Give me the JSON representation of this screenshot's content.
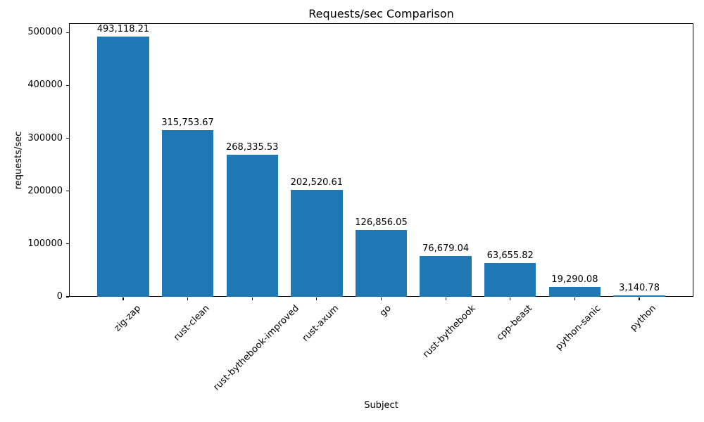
{
  "chart_data": {
    "type": "bar",
    "title": "Requests/sec Comparison",
    "xlabel": "Subject",
    "ylabel": "requests/sec",
    "categories": [
      "zig-zap",
      "rust-clean",
      "rust-bythebook-improved",
      "rust-axum",
      "go",
      "rust-bythebook",
      "cpp-beast",
      "python-sanic",
      "python"
    ],
    "values": [
      493118.21,
      315753.67,
      268335.53,
      202520.61,
      126856.05,
      76679.04,
      63655.82,
      19290.08,
      3140.78
    ],
    "value_labels": [
      "493,118.21",
      "315,753.67",
      "268,335.53",
      "202,520.61",
      "126,856.05",
      "76,679.04",
      "63,655.82",
      "19,290.08",
      "3,140.78"
    ],
    "yticks": [
      0,
      100000,
      200000,
      300000,
      400000,
      500000
    ],
    "ytick_labels": [
      "0",
      "100000",
      "200000",
      "300000",
      "400000",
      "500000"
    ],
    "ylim": [
      0,
      517774
    ],
    "bar_color": "#1f77b4",
    "grid": false,
    "legend_position": "none",
    "x_tick_label_rotation_deg": 45
  }
}
